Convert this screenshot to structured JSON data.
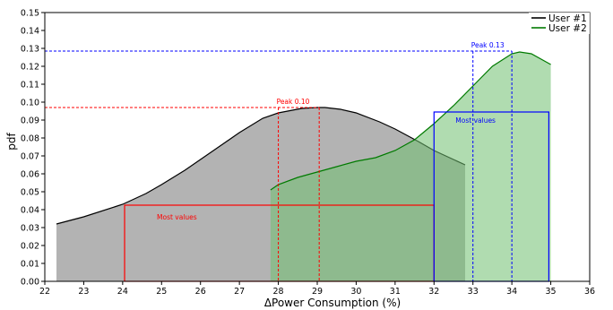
{
  "chart_data": {
    "type": "area",
    "xlabel": "ΔPower Consumption (%)",
    "ylabel": "pdf",
    "xlim": [
      22,
      36
    ],
    "ylim": [
      0,
      0.15
    ],
    "x_ticks": [
      "22",
      "23",
      "24",
      "25",
      "26",
      "27",
      "28",
      "29",
      "30",
      "31",
      "32",
      "33",
      "34",
      "35",
      "36"
    ],
    "y_ticks": [
      "0.00",
      "0.01",
      "0.02",
      "0.03",
      "0.04",
      "0.05",
      "0.06",
      "0.07",
      "0.08",
      "0.09",
      "0.10",
      "0.11",
      "0.12",
      "0.13",
      "0.14",
      "0.15"
    ],
    "legend_position": "top-right",
    "series": [
      {
        "name": "User #1",
        "line_color": "#000000",
        "fill_color": "#b3b3b3",
        "x": [
          22.3,
          23.0,
          24.0,
          24.6,
          25.0,
          25.6,
          26.0,
          26.6,
          27.0,
          27.6,
          28.0,
          28.6,
          29.0,
          29.2,
          29.6,
          30.0,
          30.6,
          31.0,
          31.6,
          32.0,
          32.5,
          32.8
        ],
        "y": [
          0.032,
          0.036,
          0.043,
          0.049,
          0.054,
          0.062,
          0.068,
          0.077,
          0.083,
          0.091,
          0.094,
          0.0965,
          0.097,
          0.097,
          0.096,
          0.094,
          0.089,
          0.085,
          0.078,
          0.073,
          0.068,
          0.065
        ]
      },
      {
        "name": "User #2",
        "line_color": "#007a00",
        "fill_color": "#6fbf6f",
        "x": [
          27.8,
          28.0,
          28.5,
          29.0,
          29.5,
          30.0,
          30.5,
          31.0,
          31.5,
          32.0,
          32.5,
          33.0,
          33.5,
          34.0,
          34.2,
          34.5,
          35.0
        ],
        "y": [
          0.051,
          0.054,
          0.058,
          0.061,
          0.064,
          0.067,
          0.069,
          0.073,
          0.079,
          0.088,
          0.098,
          0.109,
          0.12,
          0.127,
          0.128,
          0.127,
          0.121
        ]
      }
    ],
    "annotations": [
      {
        "series": "User #1",
        "color": "#ff0000",
        "peak_label": "Peak 0.10",
        "peak_y": 0.097,
        "peak_x": 29.05,
        "peak_ref_x": 28.0,
        "range_label": "Most values",
        "range_x": [
          24.05,
          32.0
        ],
        "range_y": 0.0425
      },
      {
        "series": "User #2",
        "color": "#0000ff",
        "peak_label": "Peak 0.13",
        "peak_y": 0.1285,
        "peak_x": 34.0,
        "peak_ref_x": 33.0,
        "range_label": "Most values",
        "range_x": [
          32.0,
          34.95
        ],
        "range_y": 0.0945
      }
    ]
  }
}
